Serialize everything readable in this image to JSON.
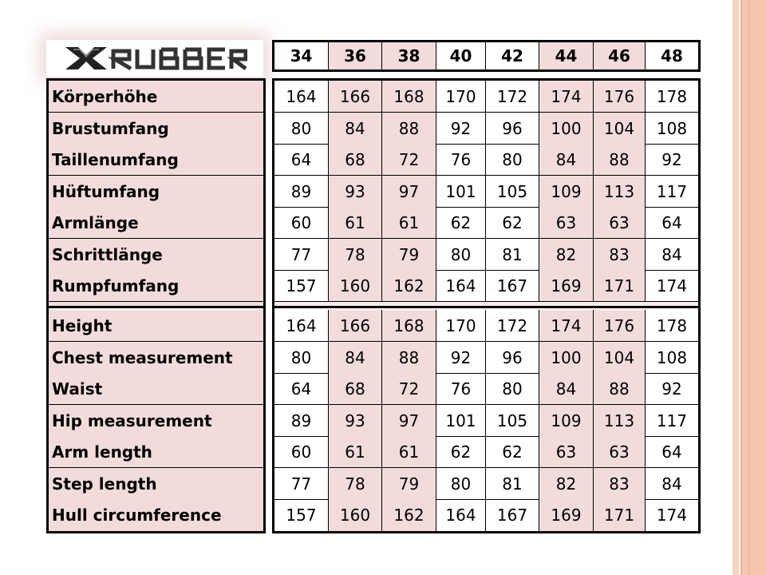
{
  "logo": {
    "text": "XRUBBER"
  },
  "colors": {
    "label_bg": "#f2dcdb",
    "highlight_col_bg": "#f2dcdb",
    "border": "#000000",
    "side_stripe": "#f7c4ad"
  },
  "sizes": [
    "34",
    "36",
    "38",
    "40",
    "42",
    "44",
    "46",
    "48"
  ],
  "highlighted_sizes": [
    "36",
    "38",
    "44",
    "46"
  ],
  "german_rows": [
    {
      "label": "Körperhöhe",
      "values": [
        "164",
        "166",
        "168",
        "170",
        "172",
        "174",
        "176",
        "178"
      ]
    },
    {
      "label": "Brustumfang",
      "values": [
        "80",
        "84",
        "88",
        "92",
        "96",
        "100",
        "104",
        "108"
      ]
    },
    {
      "label": "Taillenumfang",
      "values": [
        "64",
        "68",
        "72",
        "76",
        "80",
        "84",
        "88",
        "92"
      ]
    },
    {
      "label": "Hüftumfang",
      "values": [
        "89",
        "93",
        "97",
        "101",
        "105",
        "109",
        "113",
        "117"
      ]
    },
    {
      "label": "Armlänge",
      "values": [
        "60",
        "61",
        "61",
        "62",
        "62",
        "63",
        "63",
        "64"
      ]
    },
    {
      "label": "Schrittlänge",
      "values": [
        "77",
        "78",
        "79",
        "80",
        "81",
        "82",
        "83",
        "84"
      ]
    },
    {
      "label": "Rumpfumfang",
      "values": [
        "157",
        "160",
        "162",
        "164",
        "167",
        "169",
        "171",
        "174"
      ]
    }
  ],
  "english_rows": [
    {
      "label": "Height",
      "values": [
        "164",
        "166",
        "168",
        "170",
        "172",
        "174",
        "176",
        "178"
      ]
    },
    {
      "label": "Chest measurement",
      "values": [
        "80",
        "84",
        "88",
        "92",
        "96",
        "100",
        "104",
        "108"
      ]
    },
    {
      "label": "Waist",
      "values": [
        "64",
        "68",
        "72",
        "76",
        "80",
        "84",
        "88",
        "92"
      ]
    },
    {
      "label": "Hip measurement",
      "values": [
        "89",
        "93",
        "97",
        "101",
        "105",
        "109",
        "113",
        "117"
      ]
    },
    {
      "label": "Arm length",
      "values": [
        "60",
        "61",
        "61",
        "62",
        "62",
        "63",
        "63",
        "64"
      ]
    },
    {
      "label": "Step length",
      "values": [
        "77",
        "78",
        "79",
        "80",
        "81",
        "82",
        "83",
        "84"
      ]
    },
    {
      "label": "Hull circumference",
      "values": [
        "157",
        "160",
        "162",
        "164",
        "167",
        "169",
        "171",
        "174"
      ]
    }
  ]
}
